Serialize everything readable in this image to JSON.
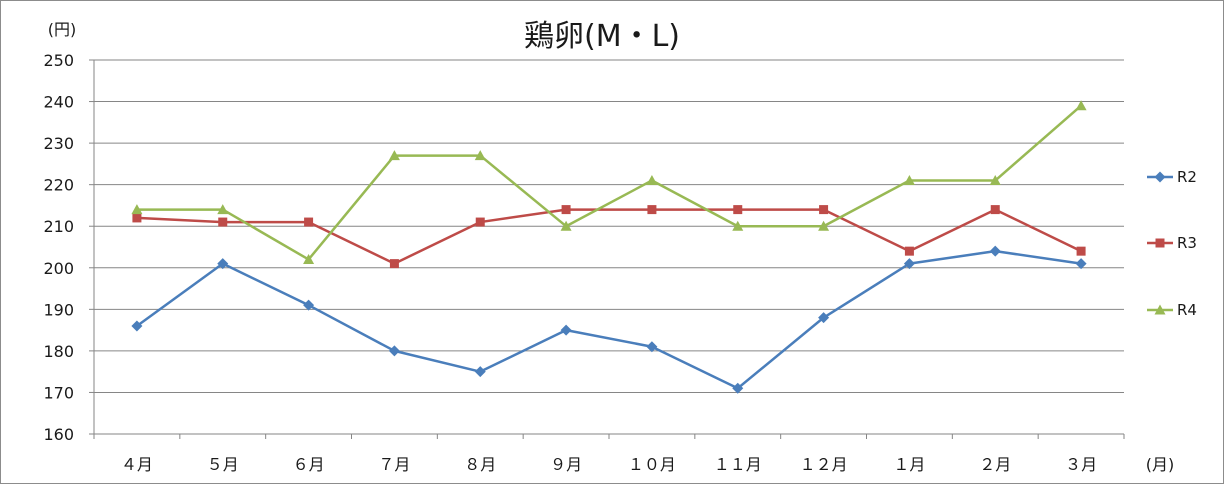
{
  "chart_data": {
    "type": "line",
    "title": "鶏卵(M・L)",
    "ylabel": "(円)",
    "xlabel": "(月)",
    "ylim": [
      160,
      250
    ],
    "yticks": [
      160,
      170,
      180,
      190,
      200,
      210,
      220,
      230,
      240,
      250
    ],
    "grid": true,
    "legend": "right",
    "categories": [
      "４月",
      "５月",
      "６月",
      "７月",
      "８月",
      "９月",
      "１０月",
      "１１月",
      "１２月",
      "１月",
      "２月",
      "３月"
    ],
    "series": [
      {
        "name": "R2",
        "color": "#4a7ebb",
        "marker": "diamond",
        "values": [
          186,
          201,
          191,
          180,
          175,
          185,
          181,
          171,
          188,
          201,
          204,
          201
        ]
      },
      {
        "name": "R3",
        "color": "#be4b48",
        "marker": "square",
        "values": [
          212,
          211,
          211,
          201,
          211,
          214,
          214,
          214,
          214,
          204,
          214,
          204
        ]
      },
      {
        "name": "R4",
        "color": "#98b954",
        "marker": "triangle",
        "values": [
          214,
          214,
          202,
          227,
          227,
          210,
          221,
          210,
          210,
          221,
          221,
          239
        ]
      }
    ]
  }
}
